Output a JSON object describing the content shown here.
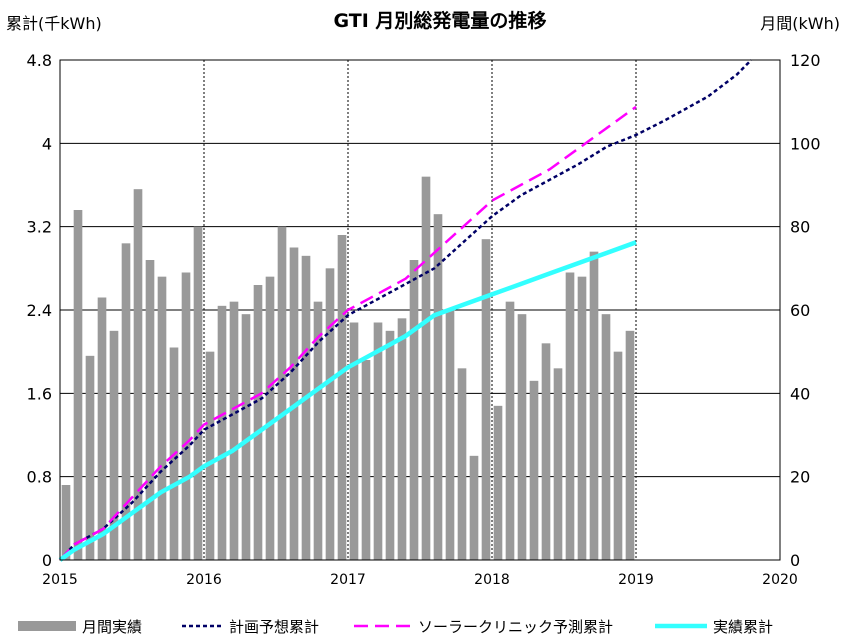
{
  "chart_data": {
    "type": "bar",
    "title": "GTI 月別総発電量の推移",
    "ylabel_left": "累計(千kWh)",
    "ylabel_right": "月間(kWh)",
    "x_ticks": [
      "2015",
      "2016",
      "2017",
      "2018",
      "2019",
      "2020"
    ],
    "y_left": {
      "ticks": [
        "0",
        "0.8",
        "1.6",
        "2.4",
        "3.2",
        "4",
        "4.8"
      ],
      "range": [
        0,
        4.8
      ]
    },
    "y_right": {
      "ticks": [
        "0",
        "20",
        "40",
        "60",
        "80",
        "100",
        "120"
      ],
      "range": [
        0,
        120
      ]
    },
    "x_range": [
      2015,
      2020
    ],
    "grid": true,
    "legend_position": "bottom",
    "months": [
      "2015-01",
      "2015-02",
      "2015-03",
      "2015-04",
      "2015-05",
      "2015-06",
      "2015-07",
      "2015-08",
      "2015-09",
      "2015-10",
      "2015-11",
      "2015-12",
      "2016-01",
      "2016-02",
      "2016-03",
      "2016-04",
      "2016-05",
      "2016-06",
      "2016-07",
      "2016-08",
      "2016-09",
      "2016-10",
      "2016-11",
      "2016-12",
      "2017-01",
      "2017-02",
      "2017-03",
      "2017-04",
      "2017-05",
      "2017-06",
      "2017-07",
      "2017-08",
      "2017-09",
      "2017-10",
      "2017-11",
      "2017-12",
      "2018-01",
      "2018-02",
      "2018-03",
      "2018-04",
      "2018-05",
      "2018-06",
      "2018-07",
      "2018-08",
      "2018-09",
      "2018-10",
      "2018-11",
      "2018-12"
    ],
    "series": [
      {
        "name": "月間実績",
        "type": "bar",
        "axis": "right",
        "color": "#999999",
        "values": [
          18,
          84,
          49,
          63,
          55,
          76,
          89,
          72,
          68,
          51,
          69,
          80,
          50,
          61,
          62,
          59,
          66,
          68,
          80,
          75,
          73,
          62,
          70,
          78,
          57,
          48,
          57,
          55,
          58,
          72,
          92,
          83,
          60,
          46,
          25,
          77,
          37,
          62,
          59,
          43,
          52,
          46,
          69,
          68,
          74,
          59,
          50,
          55
        ]
      },
      {
        "name": "計画予想累計",
        "type": "line",
        "axis": "left",
        "color": "#000066",
        "style": "dotted",
        "x": [
          2015.0,
          2015.1,
          2015.3,
          2015.5,
          2015.7,
          2015.9,
          2016.0,
          2016.2,
          2016.4,
          2016.6,
          2016.8,
          2017.0,
          2017.2,
          2017.4,
          2017.6,
          2017.8,
          2018.0,
          2018.2,
          2018.4,
          2018.6,
          2018.8,
          2019.0,
          2019.2,
          2019.5,
          2019.7,
          2019.8
        ],
        "values": [
          0.0,
          0.15,
          0.3,
          0.55,
          0.85,
          1.1,
          1.25,
          1.4,
          1.55,
          1.8,
          2.1,
          2.35,
          2.5,
          2.65,
          2.8,
          3.05,
          3.3,
          3.5,
          3.65,
          3.8,
          3.97,
          4.08,
          4.22,
          4.45,
          4.66,
          4.8
        ]
      },
      {
        "name": "ソーラークリニック予測累計",
        "type": "line",
        "axis": "left",
        "color": "#ff00ff",
        "style": "dashed",
        "x": [
          2015.0,
          2015.1,
          2015.3,
          2015.5,
          2015.7,
          2015.9,
          2016.0,
          2016.2,
          2016.4,
          2016.6,
          2016.8,
          2017.0,
          2017.2,
          2017.4,
          2017.6,
          2017.8,
          2018.0,
          2018.2,
          2018.4,
          2018.6,
          2018.8,
          2019.0
        ],
        "values": [
          0.0,
          0.15,
          0.3,
          0.6,
          0.9,
          1.15,
          1.3,
          1.45,
          1.6,
          1.85,
          2.15,
          2.4,
          2.55,
          2.7,
          2.95,
          3.2,
          3.45,
          3.6,
          3.75,
          3.95,
          4.15,
          4.35
        ]
      },
      {
        "name": "実績累計",
        "type": "line",
        "axis": "left",
        "color": "#33ffff",
        "style": "solid",
        "x": [
          2015.0,
          2015.1,
          2015.3,
          2015.5,
          2015.7,
          2015.9,
          2016.0,
          2016.2,
          2016.4,
          2016.6,
          2016.8,
          2017.0,
          2017.2,
          2017.4,
          2017.6,
          2017.8,
          2018.0,
          2018.2,
          2018.4,
          2018.6,
          2018.8,
          2019.0
        ],
        "values": [
          0.0,
          0.1,
          0.25,
          0.45,
          0.65,
          0.8,
          0.9,
          1.05,
          1.25,
          1.45,
          1.65,
          1.85,
          2.0,
          2.15,
          2.35,
          2.45,
          2.55,
          2.65,
          2.75,
          2.85,
          2.95,
          3.05
        ]
      }
    ]
  }
}
